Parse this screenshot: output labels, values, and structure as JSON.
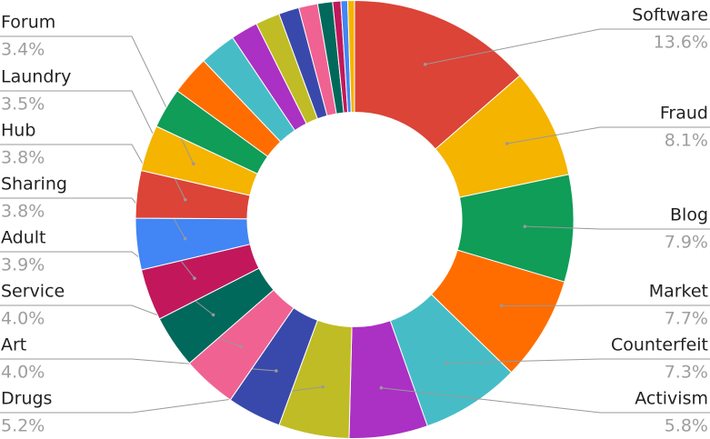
{
  "chart_data": {
    "type": "donut",
    "categories": [
      "Software",
      "Fraud",
      "Blog",
      "Market",
      "Counterfeit",
      "Activism",
      "Drugs",
      "Art",
      "Service",
      "Adult",
      "Sharing",
      "Hub",
      "Laundry",
      "Forum",
      null,
      null,
      null,
      null,
      null,
      null,
      null,
      null,
      null,
      null,
      null
    ],
    "values": [
      13.6,
      8.1,
      7.9,
      7.7,
      7.3,
      5.8,
      5.2,
      4.0,
      4.0,
      3.9,
      3.8,
      3.8,
      3.5,
      3.4,
      3.0,
      2.9,
      2.7,
      2.0,
      1.8,
      1.5,
      1.4,
      1.1,
      0.6,
      0.5,
      0.5
    ],
    "value_labels": [
      "13.6%",
      "8.1%",
      "7.9%",
      "7.7%",
      "7.3%",
      "5.8%",
      "5.2%",
      "4.0%",
      "4.0%",
      "3.9%",
      "3.8%",
      "3.8%",
      "3.5%",
      "3.4%",
      null,
      null,
      null,
      null,
      null,
      null,
      null,
      null,
      null,
      null,
      null
    ],
    "colors": [
      "#db4437",
      "#f4b400",
      "#0f9d58",
      "#ff6d00",
      "#46bdc6",
      "#ab30c4",
      "#c0bc25",
      "#3949ab",
      "#f06292",
      "#00695c",
      "#c2185b",
      "#4285f4",
      "#db4437",
      "#f4b400",
      "#0f9d58",
      "#ff6d00",
      "#46bdc6",
      "#ab30c4",
      "#c0bc25",
      "#3949ab",
      "#f06292",
      "#00695c",
      "#c2185b",
      "#4285f4",
      "#f4b400"
    ]
  }
}
